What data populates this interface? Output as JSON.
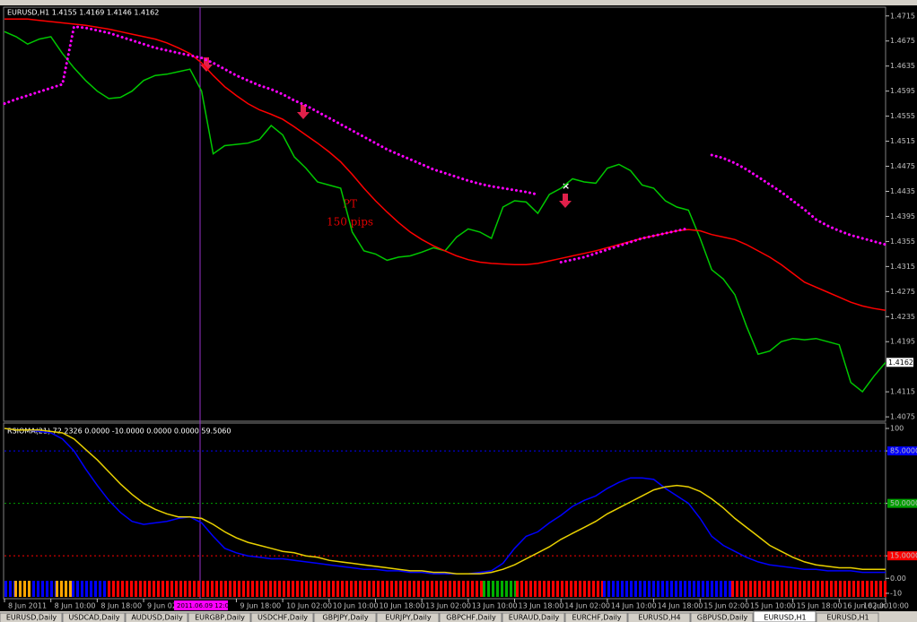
{
  "chart_data": [
    {
      "type": "line",
      "title": "EURUSD,H1  1.4155 1.4169 1.4146 1.4162",
      "categories": [
        "8 Jun 2011",
        null,
        null,
        null,
        "8 Jun 10:00",
        null,
        null,
        null,
        "8 Jun 18:00",
        null,
        null,
        null,
        "9 Jun 02:00",
        null,
        null,
        null,
        null,
        null,
        null,
        null,
        "9 Jun 18:00",
        null,
        null,
        null,
        "10 Jun 02:00",
        null,
        null,
        null,
        "10 Jun 10:00",
        null,
        null,
        null,
        "10 Jun 18:00",
        null,
        null,
        null,
        "13 Jun 02:00",
        null,
        null,
        null,
        "13 Jun 10:00",
        null,
        null,
        null,
        "13 Jun 18:00",
        null,
        null,
        null,
        "14 Jun 02:00",
        null,
        null,
        null,
        "14 Jun 10:00",
        null,
        null,
        null,
        "14 Jun 18:00",
        null,
        null,
        null,
        "15 Jun 02:00",
        null,
        null,
        null,
        "15 Jun 10:00",
        null,
        null,
        null,
        "15 Jun 18:00",
        null,
        null,
        null,
        "16 Jun 02:00",
        null,
        null,
        null,
        "16 Jun 10:00"
      ],
      "cursor_label": "2011.06.09 12:00",
      "series": [
        {
          "color": "#00c800",
          "values": [
            1.469,
            1.4682,
            1.467,
            1.4678,
            1.4682,
            1.4655,
            1.4632,
            1.4612,
            1.4595,
            1.4583,
            1.4585,
            1.4595,
            1.4612,
            1.462,
            1.4622,
            1.4626,
            1.463,
            1.4595,
            1.4495,
            1.4508,
            1.451,
            1.4512,
            1.4518,
            1.454,
            1.4525,
            1.449,
            1.4472,
            1.445,
            1.4445,
            1.444,
            1.437,
            1.434,
            1.4335,
            1.4325,
            1.433,
            1.4332,
            1.4338,
            1.4345,
            1.434,
            1.4362,
            1.4375,
            1.437,
            1.436,
            1.441,
            1.442,
            1.4418,
            1.44,
            1.443,
            1.444,
            1.4455,
            1.445,
            1.4448,
            1.4472,
            1.4478,
            1.4468,
            1.4445,
            1.444,
            1.442,
            1.441,
            1.4405,
            1.436,
            1.431,
            1.4295,
            1.427,
            1.422,
            1.4175,
            1.418,
            1.4195,
            1.42,
            1.4198,
            1.42,
            1.4195,
            1.419,
            1.413,
            1.4115,
            1.414,
            1.4162
          ]
        },
        {
          "color": "#ff0000",
          "values": [
            1.471,
            1.471,
            1.471,
            1.4708,
            1.4706,
            1.4704,
            1.4702,
            1.47,
            1.4697,
            1.4694,
            1.469,
            1.4686,
            1.4682,
            1.4678,
            1.4672,
            1.4664,
            1.4655,
            1.464,
            1.462,
            1.4602,
            1.4588,
            1.4575,
            1.4565,
            1.4558,
            1.455,
            1.4538,
            1.4525,
            1.4512,
            1.4498,
            1.4482,
            1.4462,
            1.444,
            1.442,
            1.4402,
            1.4385,
            1.437,
            1.4358,
            1.4348,
            1.434,
            1.4332,
            1.4326,
            1.4322,
            1.432,
            1.4319,
            1.4318,
            1.4318,
            1.432,
            1.4324,
            1.4328,
            1.4332,
            1.4336,
            1.434,
            1.4345,
            1.435,
            1.4355,
            1.436,
            1.4364,
            1.4368,
            1.4372,
            1.4374,
            1.4372,
            1.4366,
            1.4362,
            1.4358,
            1.435,
            1.434,
            1.433,
            1.4318,
            1.4304,
            1.429,
            1.4282,
            1.4274,
            1.4266,
            1.4258,
            1.4252,
            1.4248,
            1.4245
          ]
        },
        {
          "color": "#ff00ff",
          "style": "dotted",
          "values": [
            1.4575,
            1.4582,
            1.4588,
            1.4594,
            1.46,
            1.4606,
            1.4698,
            1.4696,
            1.4692,
            1.4688,
            1.4682,
            1.4676,
            1.467,
            1.4664,
            1.466,
            1.4656,
            1.4652,
            1.4648,
            1.464,
            1.463,
            1.462,
            1.4612,
            1.4604,
            1.4598,
            1.459,
            1.458,
            1.4572,
            1.4562,
            1.4552,
            1.4542,
            1.4532,
            1.4522,
            1.4512,
            1.4502,
            1.4494,
            1.4486,
            1.4478,
            1.447,
            1.4464,
            1.4458,
            1.4452,
            1.4447,
            1.4443,
            1.444,
            1.4437,
            1.4434,
            1.443,
            null,
            1.4322,
            1.4326,
            1.433,
            1.4336,
            1.4342,
            1.4348,
            1.4354,
            1.436,
            1.4364,
            1.4368,
            1.4372,
            1.4376,
            null,
            1.4493,
            1.4488,
            1.448,
            1.447,
            1.4458,
            1.4446,
            1.4434,
            1.442,
            1.4406,
            1.439,
            1.438,
            1.4372,
            1.4365,
            1.436,
            1.4355,
            1.435
          ]
        }
      ],
      "ylim": [
        1.4068,
        1.4729
      ],
      "yticks": [
        1.4715,
        1.4675,
        1.4635,
        1.4595,
        1.4555,
        1.4515,
        1.4475,
        1.4435,
        1.4395,
        1.4355,
        1.4315,
        1.4275,
        1.4235,
        1.4195,
        1.4115,
        1.4075
      ],
      "last_price": 1.4162,
      "annotations": [
        "PT",
        "150 pips"
      ]
    },
    {
      "type": "line",
      "title": "RSIOMA(21) 72.2326 0.0000 -10.0000 0.0000 0.0000 59.5060",
      "series": [
        {
          "color": "#0000ff",
          "values": [
            100,
            99,
            99,
            98,
            97,
            93,
            85,
            73,
            62,
            52,
            44,
            38,
            36,
            37,
            38,
            40,
            41,
            37,
            28,
            20,
            17,
            15,
            14,
            13,
            13,
            12,
            11,
            10,
            9,
            8,
            7,
            6,
            6,
            5,
            5,
            4,
            4,
            3,
            3,
            3,
            3,
            4,
            5,
            10,
            20,
            28,
            31,
            37,
            42,
            48,
            52,
            55,
            60,
            64,
            67,
            67,
            66,
            60,
            55,
            50,
            40,
            28,
            22,
            18,
            14,
            11,
            9,
            8,
            7,
            6,
            6,
            5,
            5,
            5,
            4,
            4,
            4
          ]
        },
        {
          "color": "#e8d000",
          "values": [
            100,
            99,
            99,
            99,
            98,
            97,
            93,
            86,
            79,
            71,
            63,
            56,
            50,
            46,
            43,
            41,
            41,
            40,
            36,
            31,
            27,
            24,
            22,
            20,
            18,
            17,
            15,
            14,
            12,
            11,
            10,
            9,
            8,
            7,
            6,
            5,
            5,
            4,
            4,
            3,
            3,
            3,
            4,
            6,
            9,
            13,
            17,
            21,
            26,
            30,
            34,
            38,
            43,
            47,
            51,
            55,
            59,
            61,
            62,
            61,
            58,
            53,
            47,
            40,
            34,
            28,
            22,
            18,
            14,
            11,
            9,
            8,
            7,
            7,
            6,
            6,
            6
          ]
        }
      ],
      "ylim": [
        -13.6,
        103.6
      ],
      "yticks": [
        100,
        {
          "value": 85,
          "label": "85.0000"
        },
        {
          "value": 50,
          "label": "50.0000"
        },
        {
          "value": 15,
          "label": "15.0000"
        },
        {
          "value": 0,
          "label": "0.00"
        },
        -10
      ]
    }
  ],
  "tabs": [
    "EURUSD,Daily",
    "USDCAD,Daily",
    "AUDUSD,Daily",
    "EURGBP,Daily",
    "USDCHF,Daily",
    "GBPJPY,Daily",
    "EURJPY,Daily",
    "GBPCHF,Daily",
    "EURAUD,Daily",
    "EURCHF,Daily",
    "EURUSD,H4",
    "GBPUSD,Daily",
    "EURUSD,H1",
    "EURUSD,H1"
  ]
}
